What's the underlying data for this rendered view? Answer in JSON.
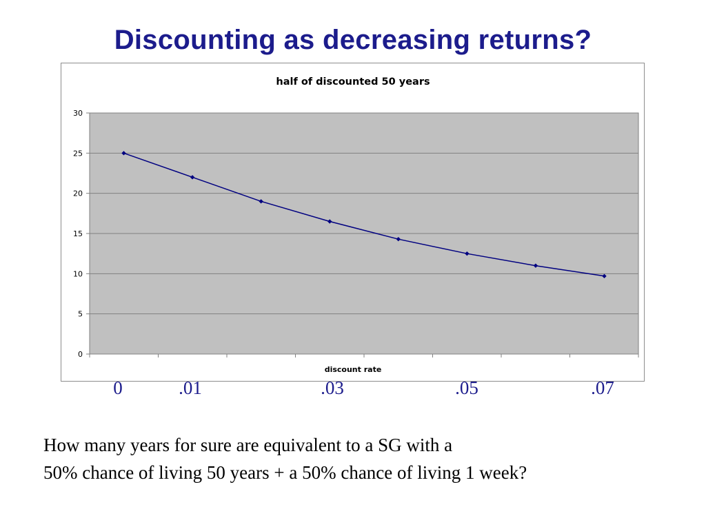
{
  "slide": {
    "title": "Discounting as decreasing returns?",
    "question_lines": [
      "How many years for sure are equivalent to a SG with a",
      "50% chance of living 50 years + a 50% chance of living 1 week?"
    ],
    "x_axis_labels": [
      ".0",
      ".01",
      ".03",
      ".05",
      ".07"
    ],
    "x_axis_labels_display": [
      "0",
      ".01",
      ".03",
      ".05",
      ".07"
    ]
  },
  "colors": {
    "title": "#1c1c8c",
    "plot_area": "#c0c0c0",
    "series_line": "#000080",
    "gridline": "#808080"
  },
  "chart_data": {
    "type": "line",
    "title": "half of discounted 50 years",
    "xlabel": "discount rate",
    "ylabel": "",
    "x": [
      0,
      0.01,
      0.02,
      0.03,
      0.04,
      0.05,
      0.06,
      0.07
    ],
    "series": [
      {
        "values": [
          25,
          22,
          19,
          16.5,
          14.3,
          12.5,
          11,
          9.7
        ]
      }
    ],
    "ylim": [
      0,
      30
    ],
    "yticks": [
      "0",
      "5",
      "10",
      "15",
      "20",
      "25",
      "30"
    ],
    "grid": true,
    "legend": "none"
  }
}
